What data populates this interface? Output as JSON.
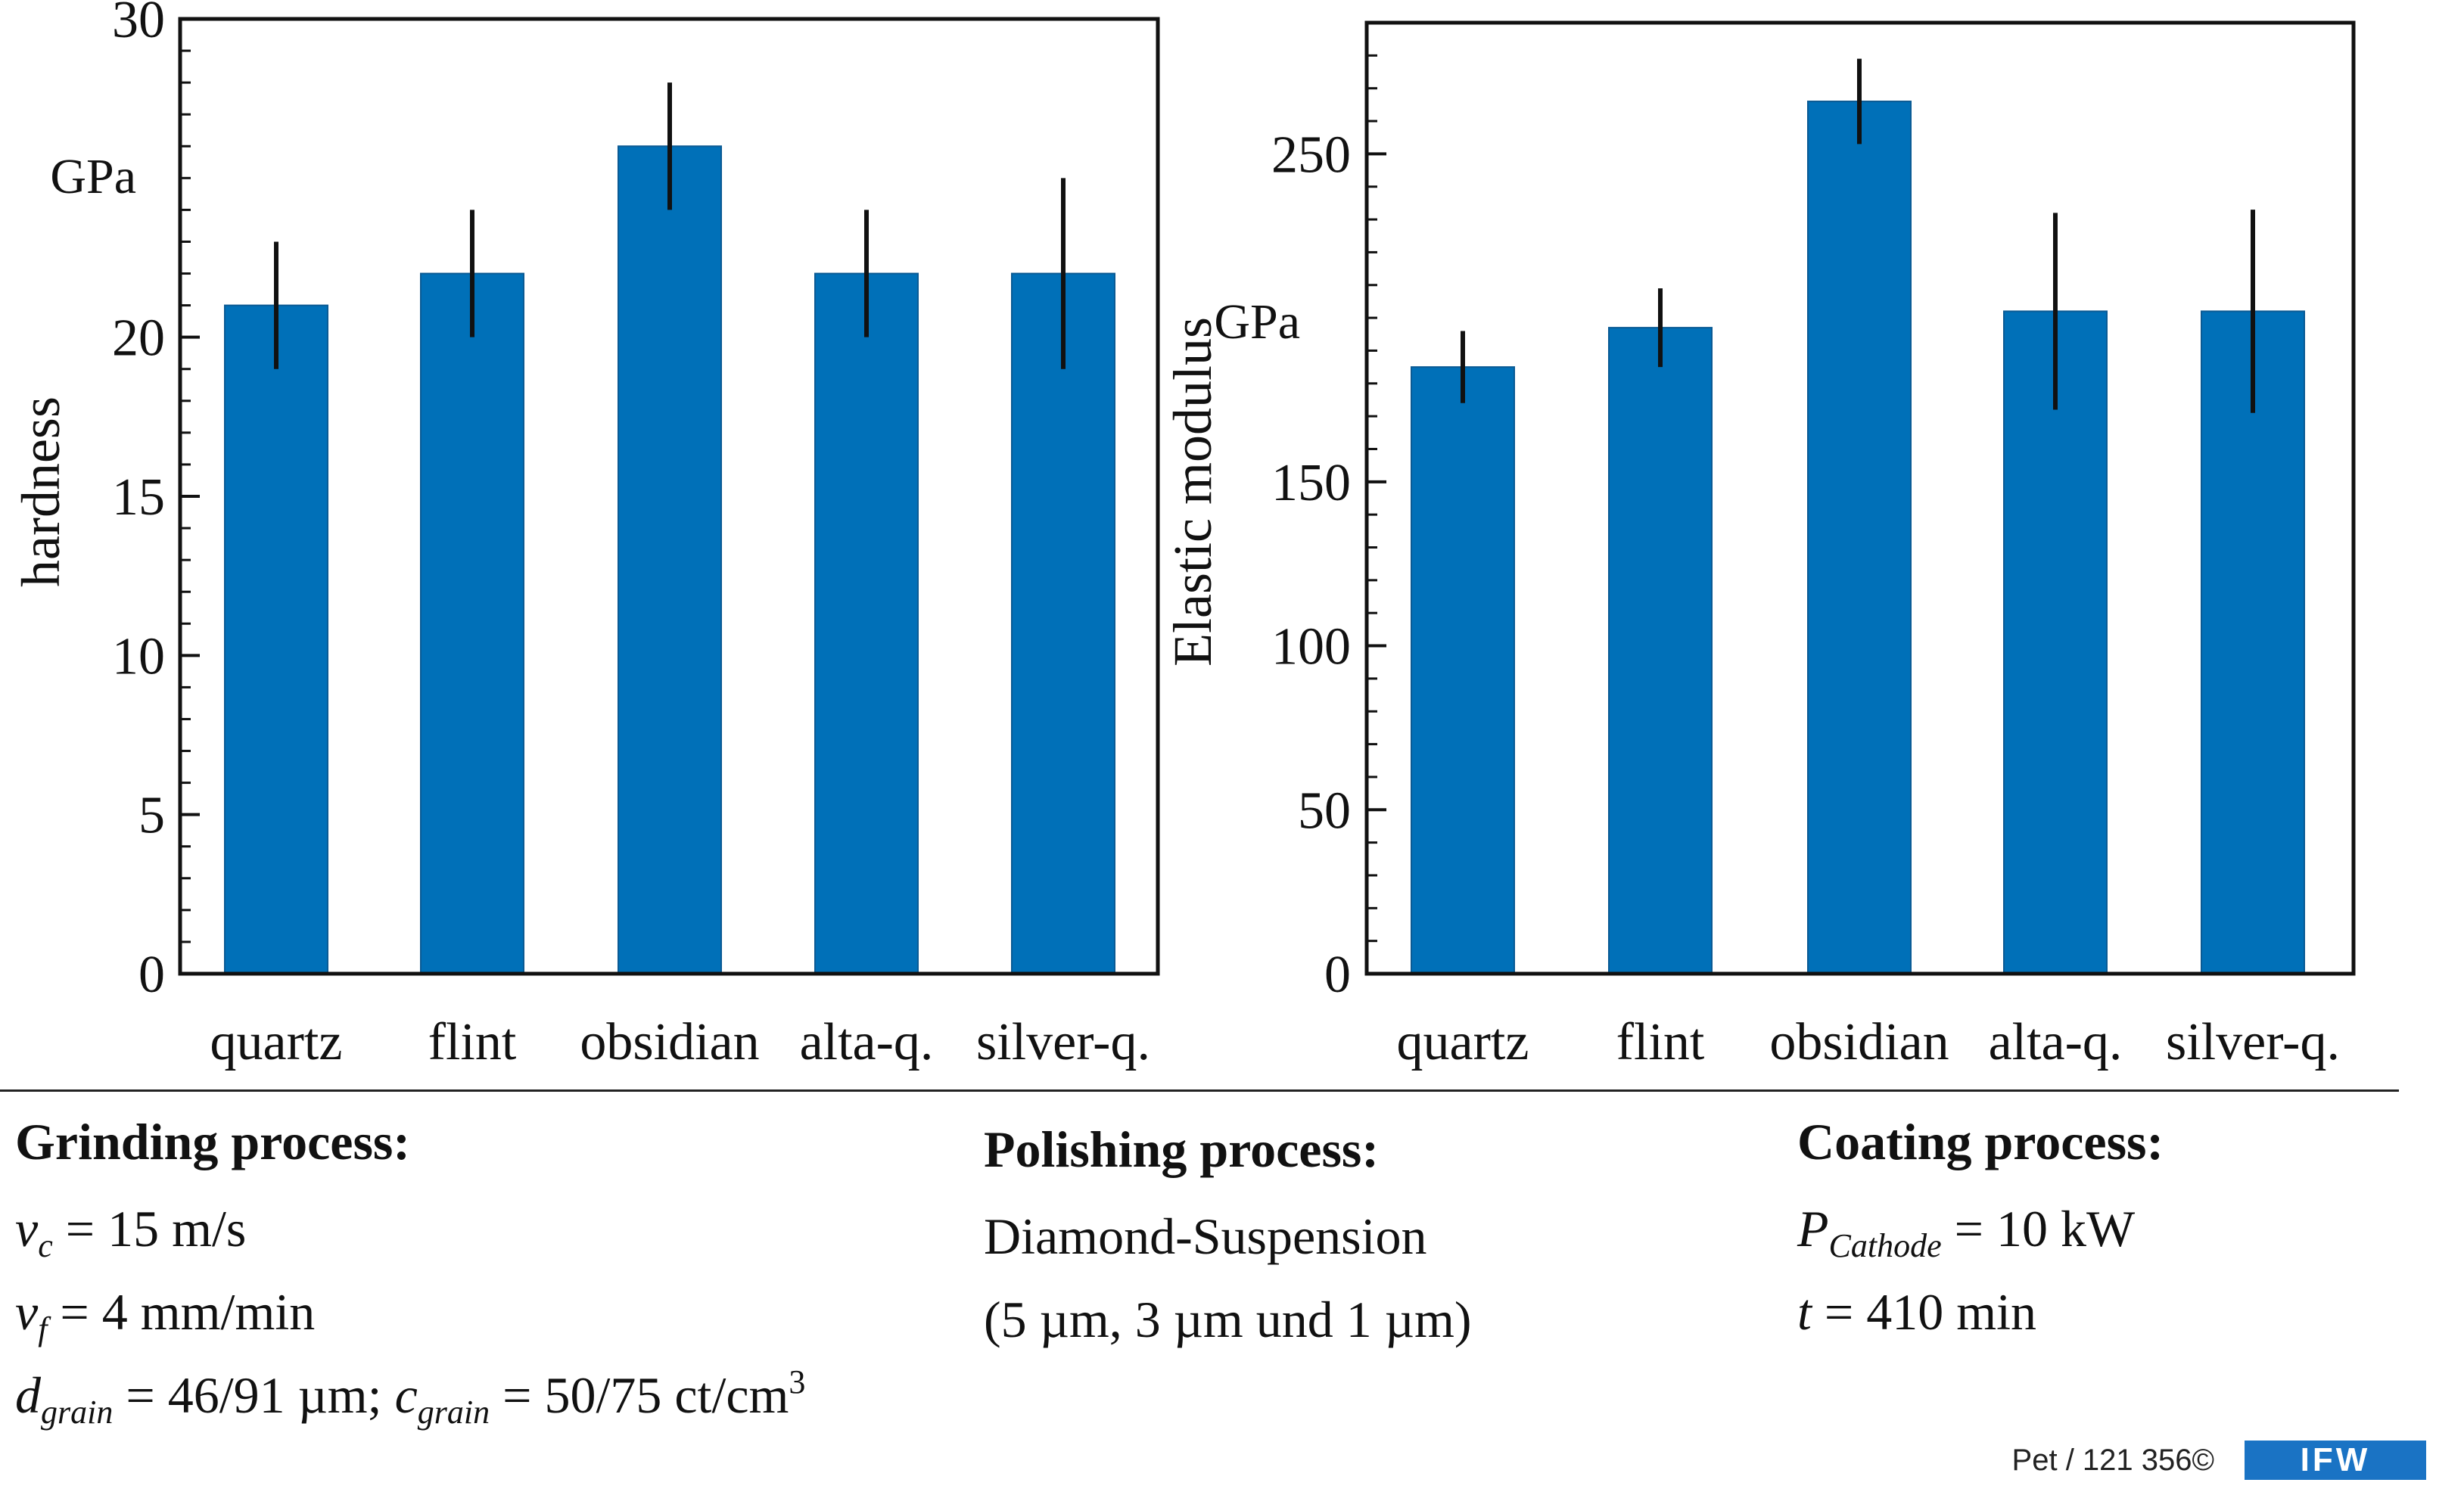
{
  "chart_data": [
    {
      "type": "bar",
      "categories": [
        "quartz",
        "flint",
        "obsidian",
        "alta-q.",
        "silver-q."
      ],
      "values": [
        21,
        22,
        26,
        22,
        22
      ],
      "errors": [
        2,
        2,
        2,
        2,
        3
      ],
      "ylabel": "hardness",
      "unit": "GPa",
      "ylim": [
        0,
        30
      ],
      "yticks": [
        "0",
        "5",
        "10",
        "15",
        "20",
        "30"
      ],
      "color": "#0070b8"
    },
    {
      "type": "bar",
      "categories": [
        "quartz",
        "flint",
        "obsidian",
        "alta-q.",
        "silver-q."
      ],
      "values": [
        185,
        197,
        266,
        202,
        202
      ],
      "errors": [
        11,
        12,
        13,
        30,
        31
      ],
      "ylabel": "Elastic modulus",
      "unit": "GPa",
      "ylim": [
        0,
        290
      ],
      "yticks": [
        "0",
        "50",
        "100",
        "150",
        "250"
      ],
      "color": "#0070b8"
    }
  ],
  "grinding": {
    "heading": "Grinding process:",
    "vc_symbol": "v",
    "vc_sub": "c",
    "vc_value": "= 15 m/s",
    "vf_symbol": "v",
    "vf_sub": "f",
    "vf_value": "= 4 mm/min",
    "d_symbol": "d",
    "d_sub": "grain",
    "d_value": "= 46/91 µm;",
    "c_symbol": "c",
    "c_sub": "grain",
    "c_value": "= 50/75 ct/cm",
    "c_sup": "3"
  },
  "polishing": {
    "heading": "Polishing process:",
    "line1": "Diamond-Suspension",
    "line2": "(5 µm, 3 µm und 1 µm)"
  },
  "coating": {
    "heading": "Coating process:",
    "p_symbol": "P",
    "p_sub": "Cathode",
    "p_value": "= 10 kW",
    "t_symbol": "t",
    "t_value": "= 410 min"
  },
  "footer": {
    "ref": "Pet / 121 356©",
    "logo": "IFW"
  }
}
